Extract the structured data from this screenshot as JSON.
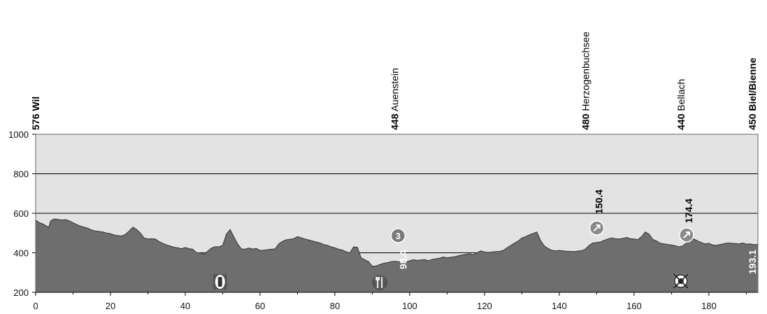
{
  "chart_data": {
    "type": "area",
    "xlim": [
      0,
      193.1
    ],
    "ylim": [
      200,
      1000
    ],
    "x_ticks": [
      "0",
      "20",
      "40",
      "60",
      "80",
      "100",
      "120",
      "140",
      "160",
      "180"
    ],
    "y_ticks": [
      "200",
      "400",
      "600",
      "800",
      "1000"
    ],
    "grid": true,
    "colors": {
      "area": "#6e6e6e",
      "plot_bg": "#e3e3e3",
      "badge": "#7a7a7a"
    },
    "profile": [
      [
        0,
        565
      ],
      [
        1,
        553
      ],
      [
        2,
        545
      ],
      [
        3,
        535
      ],
      [
        3.5,
        528
      ],
      [
        4,
        562
      ],
      [
        5,
        571
      ],
      [
        6,
        569
      ],
      [
        7,
        566
      ],
      [
        8,
        568
      ],
      [
        9,
        562
      ],
      [
        10,
        552
      ],
      [
        11,
        543
      ],
      [
        12,
        535
      ],
      [
        13,
        530
      ],
      [
        14,
        524
      ],
      [
        15,
        515
      ],
      [
        16,
        510
      ],
      [
        17,
        508
      ],
      [
        18,
        505
      ],
      [
        19,
        500
      ],
      [
        20,
        497
      ],
      [
        21,
        490
      ],
      [
        22,
        487
      ],
      [
        23,
        485
      ],
      [
        24,
        493
      ],
      [
        25,
        510
      ],
      [
        26,
        530
      ],
      [
        27,
        518
      ],
      [
        28,
        500
      ],
      [
        29,
        475
      ],
      [
        30,
        470
      ],
      [
        31,
        471
      ],
      [
        32,
        470
      ],
      [
        33,
        457
      ],
      [
        34,
        448
      ],
      [
        35,
        440
      ],
      [
        36,
        434
      ],
      [
        37,
        428
      ],
      [
        38,
        425
      ],
      [
        39,
        421
      ],
      [
        40,
        427
      ],
      [
        41,
        421
      ],
      [
        42,
        418
      ],
      [
        43,
        401
      ],
      [
        44,
        399
      ],
      [
        45,
        393
      ],
      [
        46,
        408
      ],
      [
        47,
        424
      ],
      [
        48,
        431
      ],
      [
        49,
        430
      ],
      [
        50,
        438
      ],
      [
        51,
        495
      ],
      [
        52,
        518
      ],
      [
        53,
        480
      ],
      [
        54,
        445
      ],
      [
        55,
        420
      ],
      [
        56,
        418
      ],
      [
        57,
        424
      ],
      [
        58,
        419
      ],
      [
        59,
        422
      ],
      [
        60,
        412
      ],
      [
        61,
        413
      ],
      [
        62,
        416
      ],
      [
        63,
        418
      ],
      [
        64,
        420
      ],
      [
        65,
        445
      ],
      [
        66,
        458
      ],
      [
        67,
        466
      ],
      [
        68,
        468
      ],
      [
        69,
        472
      ],
      [
        70,
        482
      ],
      [
        71,
        476
      ],
      [
        72,
        470
      ],
      [
        73,
        465
      ],
      [
        74,
        460
      ],
      [
        75,
        455
      ],
      [
        76,
        450
      ],
      [
        77,
        442
      ],
      [
        78,
        438
      ],
      [
        79,
        430
      ],
      [
        80,
        425
      ],
      [
        81,
        418
      ],
      [
        82,
        414
      ],
      [
        83,
        405
      ],
      [
        84,
        400
      ],
      [
        85,
        430
      ],
      [
        86,
        428
      ],
      [
        87,
        375
      ],
      [
        88,
        365
      ],
      [
        89,
        355
      ],
      [
        90,
        332
      ],
      [
        91,
        333
      ],
      [
        92,
        340
      ],
      [
        93,
        347
      ],
      [
        94,
        350
      ],
      [
        95,
        355
      ],
      [
        96,
        357
      ],
      [
        97,
        355
      ],
      [
        98,
        352
      ],
      [
        99,
        353
      ],
      [
        100,
        360
      ],
      [
        101,
        365
      ],
      [
        102,
        362
      ],
      [
        103,
        364
      ],
      [
        104,
        366
      ],
      [
        105,
        360
      ],
      [
        106,
        367
      ],
      [
        107,
        370
      ],
      [
        108,
        373
      ],
      [
        109,
        379
      ],
      [
        110,
        375
      ],
      [
        111,
        378
      ],
      [
        112,
        380
      ],
      [
        113,
        385
      ],
      [
        114,
        389
      ],
      [
        115,
        392
      ],
      [
        116,
        395
      ],
      [
        117,
        390
      ],
      [
        118,
        400
      ],
      [
        119,
        410
      ],
      [
        120,
        404
      ],
      [
        121,
        402
      ],
      [
        122,
        404
      ],
      [
        123,
        406
      ],
      [
        124,
        407
      ],
      [
        125,
        412
      ],
      [
        126,
        425
      ],
      [
        127,
        437
      ],
      [
        128,
        449
      ],
      [
        129,
        460
      ],
      [
        130,
        475
      ],
      [
        131,
        482
      ],
      [
        132,
        491
      ],
      [
        133,
        498
      ],
      [
        134,
        505
      ],
      [
        135,
        462
      ],
      [
        136,
        435
      ],
      [
        137,
        422
      ],
      [
        138,
        413
      ],
      [
        139,
        410
      ],
      [
        140,
        412
      ],
      [
        141,
        410
      ],
      [
        142,
        408
      ],
      [
        143,
        407
      ],
      [
        144,
        406
      ],
      [
        145,
        409
      ],
      [
        146,
        411
      ],
      [
        147,
        419
      ],
      [
        148,
        438
      ],
      [
        149,
        450
      ],
      [
        150,
        452
      ],
      [
        151,
        455
      ],
      [
        152,
        463
      ],
      [
        153,
        470
      ],
      [
        154,
        475
      ],
      [
        155,
        472
      ],
      [
        156,
        470
      ],
      [
        157,
        473
      ],
      [
        158,
        478
      ],
      [
        159,
        472
      ],
      [
        160,
        470
      ],
      [
        161,
        467
      ],
      [
        162,
        482
      ],
      [
        163,
        505
      ],
      [
        164,
        495
      ],
      [
        165,
        468
      ],
      [
        166,
        460
      ],
      [
        167,
        448
      ],
      [
        168,
        445
      ],
      [
        169,
        442
      ],
      [
        170,
        440
      ],
      [
        171,
        436
      ],
      [
        172,
        430
      ],
      [
        173,
        435
      ],
      [
        174,
        450
      ],
      [
        175,
        465
      ],
      [
        176,
        470
      ],
      [
        177,
        460
      ],
      [
        178,
        452
      ],
      [
        179,
        445
      ],
      [
        180,
        448
      ],
      [
        181,
        440
      ],
      [
        182,
        438
      ],
      [
        183,
        442
      ],
      [
        184,
        446
      ],
      [
        185,
        450
      ],
      [
        186,
        448
      ],
      [
        187,
        447
      ],
      [
        188,
        445
      ],
      [
        189,
        450
      ],
      [
        190,
        444
      ],
      [
        191,
        445
      ],
      [
        192,
        441
      ],
      [
        193.1,
        443
      ]
    ],
    "places": [
      {
        "label": "576 Wil",
        "km": 0
      },
      {
        "label": "448 Auenstein",
        "km": 96
      },
      {
        "label": "480 Herzogenbuchsee",
        "km": 147
      },
      {
        "label": "440 Bellach",
        "km": 172.5
      },
      {
        "label": "450 Biel/Bienne",
        "km": 193.1
      }
    ],
    "km_labels": [
      {
        "text": "98.4",
        "km": 98.4,
        "style": "light"
      },
      {
        "text": "150.4",
        "km": 150.4,
        "style": "dark"
      },
      {
        "text": "174.4",
        "km": 174.4,
        "style": "dark"
      },
      {
        "text": "193.1",
        "km": 193.1,
        "style": "light"
      }
    ],
    "markers": [
      {
        "kind": "climb-category",
        "text": "3",
        "km": 98.4,
        "elevation": 448
      },
      {
        "kind": "sprint",
        "icon": "sprint-icon",
        "km": 150.4,
        "elevation": 480
      },
      {
        "kind": "sprint",
        "icon": "sprint-icon",
        "km": 174.4,
        "elevation": 440
      },
      {
        "kind": "feed",
        "icon": "bottle-icon",
        "km": 49.3
      },
      {
        "kind": "feed",
        "icon": "fork-knife-icon",
        "km": 92
      },
      {
        "kind": "feed",
        "icon": "no-litter-icon",
        "km": 172.5
      }
    ]
  }
}
